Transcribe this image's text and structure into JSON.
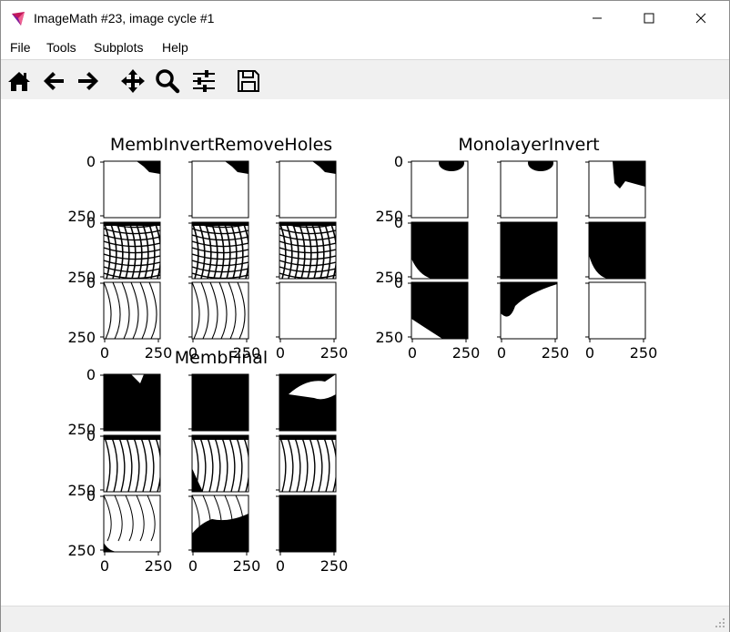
{
  "window": {
    "title": "ImageMath #23, image cycle #1",
    "controls": [
      "minimize",
      "maximize",
      "close"
    ]
  },
  "menu": [
    {
      "label": "File"
    },
    {
      "label": "Tools"
    },
    {
      "label": "Subplots"
    },
    {
      "label": "Help"
    }
  ],
  "toolbar": [
    {
      "name": "home-icon",
      "tip": "Reset original view"
    },
    {
      "name": "back-icon",
      "tip": "Back"
    },
    {
      "name": "forward-icon",
      "tip": "Forward"
    },
    {
      "name": "pan-icon",
      "tip": "Pan"
    },
    {
      "name": "zoom-icon",
      "tip": "Zoom"
    },
    {
      "name": "configure-subplots-icon",
      "tip": "Configure subplots"
    },
    {
      "name": "save-icon",
      "tip": "Save"
    }
  ],
  "figure": {
    "groups": [
      {
        "title": "MembInvertRemoveHoles",
        "style": "white"
      },
      {
        "title": "MonolayerInvert",
        "style": "blobs"
      },
      {
        "title": "MembFinal",
        "style": "black"
      }
    ],
    "y_ticks": [
      "0",
      "250"
    ],
    "x_ticks": [
      "0",
      "250"
    ]
  }
}
